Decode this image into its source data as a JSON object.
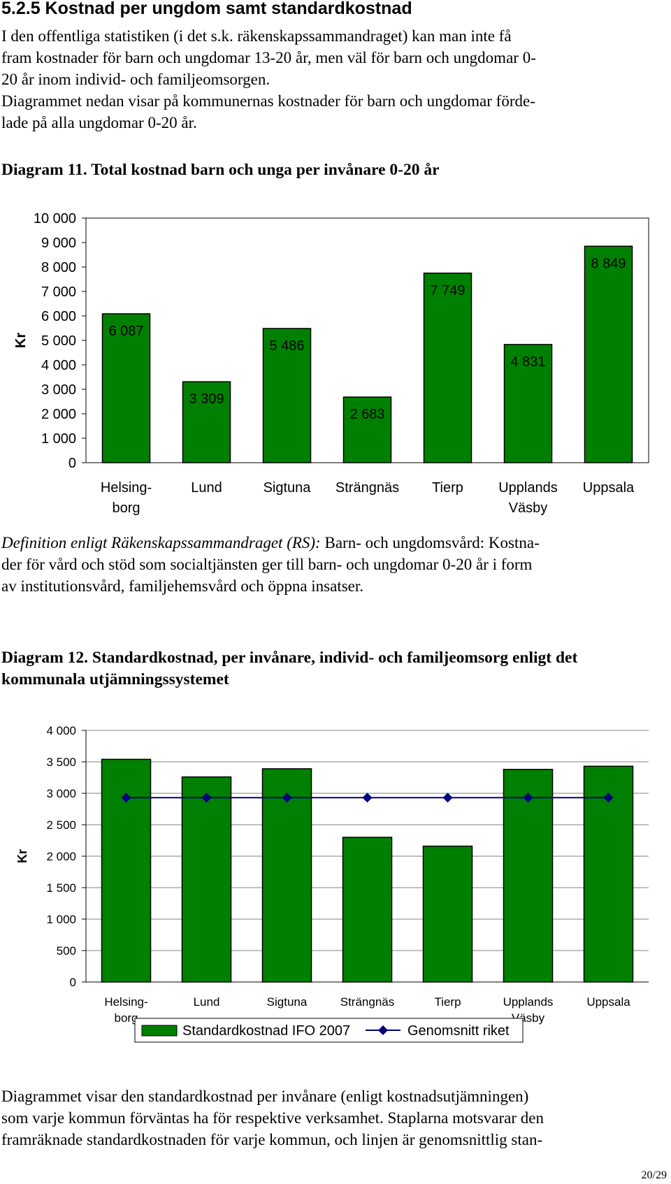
{
  "section": {
    "heading": "5.2.5 Kostnad per ungdom samt standardkostnad",
    "intro_lines": [
      "I den offentliga statistiken (i det s.k. räkenskapssammandraget) kan man inte få",
      "fram kostnader för barn och ungdomar 13-20 år, men väl för barn och ungdomar 0-",
      "20 år inom individ- och familjeomsorgen.",
      "Diagrammet nedan visar på kommunernas kostnader för barn och ungdomar förde-",
      "lade på alla ungdomar 0-20 år."
    ]
  },
  "diagram11": {
    "title": "Diagram 11. Total kostnad barn och unga per invånare 0-20 år"
  },
  "definition": {
    "lead": "Definition enligt Räkenskapssammandraget (RS):",
    "line1_rest": " Barn- och ungdomsvård: Kostna-",
    "lines": [
      "der för vård och stöd som socialtjänsten ger till barn- och ungdomar 0-20 år i form",
      "av institutionsvård, familjehemsvård och öppna insatser."
    ]
  },
  "diagram12": {
    "title": "Diagram 12. Standardkostnad, per invånare, individ- och familjeomsorg enligt det kommunala utjämningssystemet"
  },
  "outro_lines": [
    "Diagrammet visar den standardkostnad per invånare (enligt kostnadsutjämningen)",
    "som varje kommun förväntas ha för respektive verksamhet. Staplarna motsvarar den",
    "framräknade standardkostnaden för varje kommun, och linjen är genomsnittlig stan-"
  ],
  "page_number": "20/29",
  "colors": {
    "bar": "#008000",
    "line": "#000080",
    "marker": "#000080"
  },
  "chart_data": [
    {
      "type": "bar",
      "title": "",
      "ylabel": "Kr",
      "xlabel": "",
      "ylim": [
        0,
        10000
      ],
      "ytick_step": 1000,
      "ytick_labels": [
        "0",
        "1 000",
        "2 000",
        "3 000",
        "4 000",
        "5 000",
        "6 000",
        "7 000",
        "8 000",
        "9 000",
        "10 000"
      ],
      "categories": [
        [
          "Helsing-",
          "borg"
        ],
        [
          "Lund"
        ],
        [
          "Sigtuna"
        ],
        [
          "Strängnäs"
        ],
        [
          "Tierp"
        ],
        [
          "Upplands",
          "Väsby"
        ],
        [
          "Uppsala"
        ]
      ],
      "values": [
        6087,
        3309,
        5486,
        2683,
        7749,
        4831,
        8849
      ],
      "data_labels": [
        "6 087",
        "3 309",
        "5 486",
        "2 683",
        "7 749",
        "4 831",
        "8 849"
      ],
      "grid": false,
      "legend": "none"
    },
    {
      "type": "bar",
      "title": "",
      "ylabel": "Kr",
      "xlabel": "",
      "ylim": [
        0,
        4000
      ],
      "ytick_step": 500,
      "ytick_labels": [
        "0",
        "500",
        "1 000",
        "1 500",
        "2 000",
        "2 500",
        "3 000",
        "3 500",
        "4 000"
      ],
      "categories": [
        [
          "Helsing-",
          "borg"
        ],
        [
          "Lund"
        ],
        [
          "Sigtuna"
        ],
        [
          "Strängnäs"
        ],
        [
          "Tierp"
        ],
        [
          "Upplands",
          "Väsby"
        ],
        [
          "Uppsala"
        ]
      ],
      "series": [
        {
          "name": "Standardkostnad IFO 2007",
          "kind": "bar",
          "values": [
            3540,
            3260,
            3390,
            2300,
            2160,
            3380,
            3430
          ]
        },
        {
          "name": "Genomsnitt riket",
          "kind": "line",
          "values": [
            2930,
            2930,
            2930,
            2930,
            2930,
            2930,
            2930
          ]
        }
      ],
      "grid": true,
      "legend": "bottom"
    }
  ]
}
